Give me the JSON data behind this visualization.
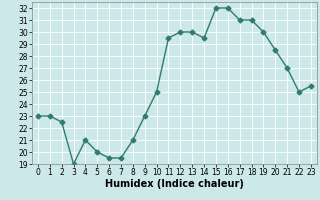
{
  "x": [
    0,
    1,
    2,
    3,
    4,
    5,
    6,
    7,
    8,
    9,
    10,
    11,
    12,
    13,
    14,
    15,
    16,
    17,
    18,
    19,
    20,
    21,
    22,
    23
  ],
  "y": [
    23,
    23,
    22.5,
    19,
    21,
    20,
    19.5,
    19.5,
    21,
    23,
    25,
    29.5,
    30,
    30,
    29.5,
    32,
    32,
    31,
    31,
    30,
    28.5,
    27,
    25,
    25.5
  ],
  "line_color": "#2e7d6e",
  "marker": "D",
  "markersize": 2.5,
  "linewidth": 1.0,
  "bg_color": "#cce8e8",
  "grid_color": "#ffffff",
  "xlabel": "Humidex (Indice chaleur)",
  "xlabel_fontsize": 7,
  "tick_fontsize": 5.5,
  "xlim": [
    -0.5,
    23.5
  ],
  "ylim": [
    19,
    32.5
  ],
  "yticks": [
    19,
    20,
    21,
    22,
    23,
    24,
    25,
    26,
    27,
    28,
    29,
    30,
    31,
    32
  ],
  "xticks": [
    0,
    1,
    2,
    3,
    4,
    5,
    6,
    7,
    8,
    9,
    10,
    11,
    12,
    13,
    14,
    15,
    16,
    17,
    18,
    19,
    20,
    21,
    22,
    23
  ]
}
